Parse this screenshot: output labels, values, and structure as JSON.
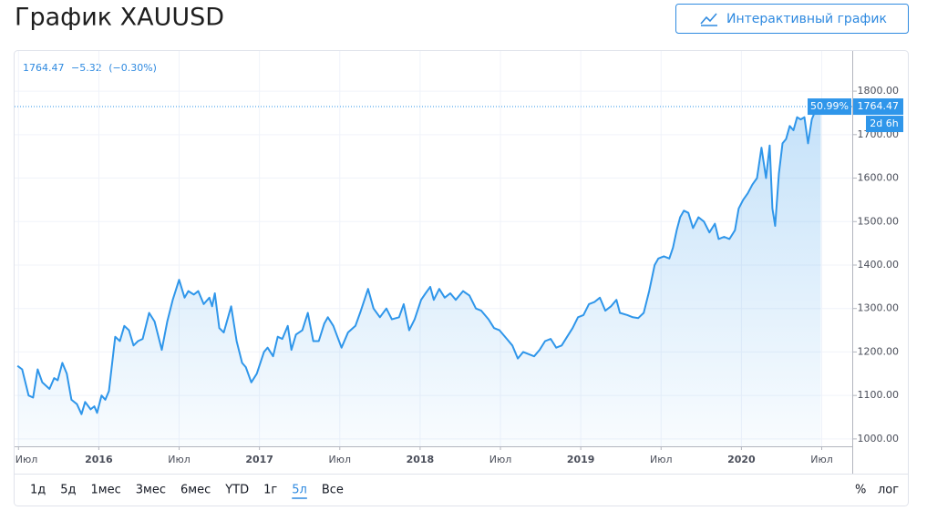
{
  "header": {
    "title": "График XAUUSD",
    "button": "Интерактивный график"
  },
  "chart_data": {
    "type": "line",
    "legend_price": "1764.47",
    "legend_change": "−5.32",
    "legend_change_pct": "(−0.30%)",
    "price_label": "1764.47",
    "pct_label": "50.99%",
    "countdown_label": "2d 6h",
    "color": "#2f96ea",
    "grid": true,
    "xlim": [
      2015.47,
      2020.69
    ],
    "ylim": [
      983,
      1884
    ],
    "xticks": [
      {
        "value": 2015.5,
        "label": "Июл"
      },
      {
        "value": 2016,
        "label": "2016"
      },
      {
        "value": 2016.5,
        "label": "Июл"
      },
      {
        "value": 2017,
        "label": "2017"
      },
      {
        "value": 2017.5,
        "label": "Июл"
      },
      {
        "value": 2018,
        "label": "2018"
      },
      {
        "value": 2018.5,
        "label": "Июл"
      },
      {
        "value": 2019,
        "label": "2019"
      },
      {
        "value": 2019.5,
        "label": "Июл"
      },
      {
        "value": 2020,
        "label": "2020"
      },
      {
        "value": 2020.5,
        "label": "Июл"
      }
    ],
    "yticks": [
      {
        "value": 1000,
        "label": "1000.00"
      },
      {
        "value": 1100,
        "label": "1100.00"
      },
      {
        "value": 1200,
        "label": "1200.00"
      },
      {
        "value": 1300,
        "label": "1300.00"
      },
      {
        "value": 1400,
        "label": "1400.00"
      },
      {
        "value": 1500,
        "label": "1500.00"
      },
      {
        "value": 1600,
        "label": "1600.00"
      },
      {
        "value": 1700,
        "label": "1700.00"
      },
      {
        "value": 1800,
        "label": "1800.00"
      }
    ],
    "x": [
      2015.494,
      2015.523,
      2015.563,
      2015.591,
      2015.619,
      2015.648,
      2015.693,
      2015.722,
      2015.744,
      2015.773,
      2015.801,
      2015.83,
      2015.864,
      2015.892,
      2015.915,
      2015.949,
      2015.972,
      2015.989,
      2016.017,
      2016.04,
      2016.063,
      2016.102,
      2016.131,
      2016.159,
      2016.188,
      2016.216,
      2016.244,
      2016.273,
      2016.313,
      2016.347,
      2016.392,
      2016.426,
      2016.46,
      2016.5,
      2016.534,
      2016.557,
      2016.591,
      2016.619,
      2016.653,
      2016.688,
      2016.705,
      2016.722,
      2016.75,
      2016.778,
      2016.824,
      2016.858,
      2016.892,
      2016.915,
      2016.949,
      2016.983,
      2017.028,
      2017.051,
      2017.085,
      2017.114,
      2017.142,
      2017.176,
      2017.199,
      2017.227,
      2017.267,
      2017.301,
      2017.335,
      2017.369,
      2017.403,
      2017.426,
      2017.46,
      2017.511,
      2017.551,
      2017.597,
      2017.631,
      2017.676,
      2017.71,
      2017.75,
      2017.79,
      2017.824,
      2017.869,
      2017.898,
      2017.932,
      2017.966,
      2018.006,
      2018.034,
      2018.063,
      2018.085,
      2018.119,
      2018.153,
      2018.188,
      2018.222,
      2018.267,
      2018.307,
      2018.347,
      2018.381,
      2018.426,
      2018.46,
      2018.494,
      2018.54,
      2018.574,
      2018.608,
      2018.642,
      2018.676,
      2018.71,
      2018.744,
      2018.778,
      2018.813,
      2018.847,
      2018.881,
      2018.915,
      2018.949,
      2018.983,
      2019.017,
      2019.051,
      2019.085,
      2019.119,
      2019.153,
      2019.188,
      2019.222,
      2019.244,
      2019.29,
      2019.324,
      2019.358,
      2019.392,
      2019.426,
      2019.46,
      2019.483,
      2019.517,
      2019.551,
      2019.574,
      2019.597,
      2019.619,
      2019.642,
      2019.67,
      2019.699,
      2019.733,
      2019.767,
      2019.801,
      2019.835,
      2019.858,
      2019.892,
      2019.926,
      2019.96,
      2019.983,
      2020.011,
      2020.04,
      2020.068,
      2020.097,
      2020.125,
      2020.153,
      2020.176,
      2020.193,
      2020.21,
      2020.233,
      2020.256,
      2020.278,
      2020.301,
      2020.324,
      2020.347,
      2020.369,
      2020.392,
      2020.415,
      2020.438,
      2020.466,
      2020.494
    ],
    "values": [
      1168,
      1160,
      1100,
      1095,
      1160,
      1130,
      1115,
      1140,
      1135,
      1175,
      1150,
      1090,
      1080,
      1057,
      1085,
      1068,
      1075,
      1060,
      1100,
      1090,
      1110,
      1235,
      1225,
      1260,
      1250,
      1215,
      1225,
      1230,
      1290,
      1270,
      1205,
      1270,
      1320,
      1366,
      1325,
      1340,
      1332,
      1340,
      1310,
      1325,
      1305,
      1335,
      1255,
      1245,
      1305,
      1225,
      1175,
      1165,
      1130,
      1150,
      1200,
      1210,
      1190,
      1235,
      1230,
      1260,
      1205,
      1240,
      1250,
      1290,
      1225,
      1225,
      1265,
      1280,
      1260,
      1210,
      1245,
      1260,
      1295,
      1345,
      1300,
      1280,
      1300,
      1275,
      1280,
      1310,
      1250,
      1275,
      1320,
      1335,
      1350,
      1320,
      1345,
      1325,
      1335,
      1320,
      1340,
      1330,
      1300,
      1295,
      1275,
      1255,
      1250,
      1230,
      1215,
      1185,
      1200,
      1195,
      1190,
      1205,
      1225,
      1230,
      1210,
      1215,
      1235,
      1255,
      1280,
      1285,
      1310,
      1315,
      1325,
      1295,
      1305,
      1320,
      1290,
      1285,
      1280,
      1278,
      1290,
      1340,
      1400,
      1415,
      1420,
      1415,
      1440,
      1480,
      1510,
      1525,
      1520,
      1485,
      1510,
      1500,
      1475,
      1495,
      1460,
      1465,
      1460,
      1480,
      1530,
      1550,
      1565,
      1585,
      1600,
      1670,
      1600,
      1675,
      1530,
      1490,
      1610,
      1680,
      1690,
      1720,
      1710,
      1740,
      1735,
      1740,
      1680,
      1735,
      1760,
      1764.47
    ]
  },
  "toolbar": {
    "ranges": [
      "1д",
      "5д",
      "1мес",
      "3мес",
      "6мес",
      "YTD",
      "1г",
      "5л",
      "Все"
    ],
    "active": "5л",
    "options": [
      "%",
      "лог"
    ]
  }
}
